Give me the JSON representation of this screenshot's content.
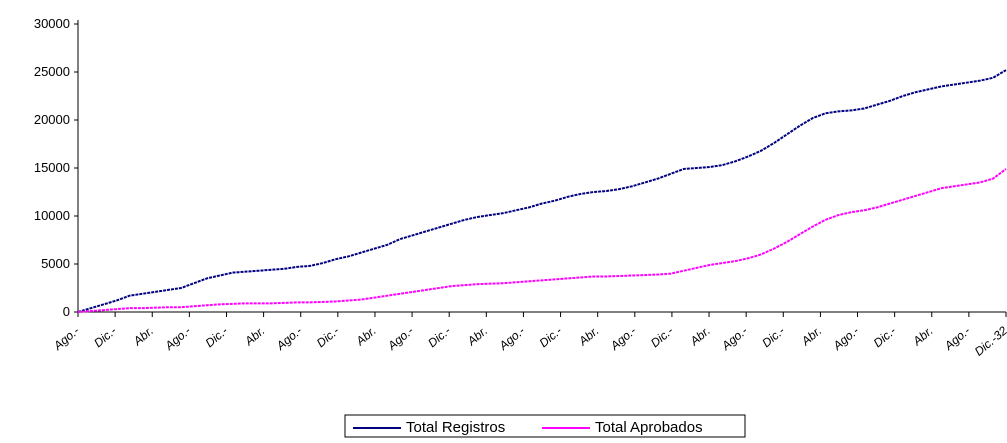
{
  "chart_data": {
    "type": "line",
    "title": "",
    "xlabel": "",
    "ylabel": "",
    "ylim": [
      0,
      30000
    ],
    "yticks": [
      0,
      5000,
      10000,
      15000,
      20000,
      25000,
      30000
    ],
    "ytick_labels": [
      "0",
      "5000",
      "10000",
      "15000",
      "20000",
      "25000",
      "30000"
    ],
    "xtick_labels": [
      "Ago.-",
      "Dic.-",
      "Abr.",
      "Ago.-",
      "Dic.-",
      "Abr.",
      "Ago.-",
      "Dic.-",
      "Abr.",
      "Ago.-",
      "Dic.-",
      "Abr.",
      "Ago.-",
      "Dic.-",
      "Abr.",
      "Ago.-",
      "Dic.-",
      "Abr.",
      "Ago.-",
      "Dic.-",
      "Abr.",
      "Ago.-",
      "Dic.-",
      "Abr.",
      "Ago.-",
      "Dic.-32"
    ],
    "legend_position": "bottom",
    "grid": false,
    "series": [
      {
        "name": "Total Registros",
        "color": "#000080",
        "values": [
          0,
          400,
          800,
          1200,
          1700,
          1900,
          2100,
          2300,
          2500,
          3000,
          3500,
          3800,
          4100,
          4200,
          4300,
          4400,
          4500,
          4700,
          4800,
          5100,
          5500,
          5800,
          6200,
          6600,
          7000,
          7600,
          8000,
          8400,
          8800,
          9200,
          9600,
          9900,
          10100,
          10300,
          10600,
          10900,
          11300,
          11600,
          12000,
          12300,
          12500,
          12600,
          12800,
          13100,
          13500,
          13900,
          14400,
          14900,
          15000,
          15100,
          15300,
          15700,
          16200,
          16800,
          17600,
          18500,
          19400,
          20200,
          20700,
          20900,
          21000,
          21200,
          21600,
          22000,
          22500,
          22900,
          23200,
          23500,
          23700,
          23900,
          24100,
          24400,
          25200
        ]
      },
      {
        "name": "Total Aprobados",
        "color": "#ff00ff",
        "values": [
          0,
          100,
          200,
          300,
          400,
          400,
          450,
          500,
          500,
          600,
          700,
          800,
          850,
          900,
          900,
          900,
          950,
          1000,
          1000,
          1050,
          1100,
          1200,
          1300,
          1500,
          1700,
          1900,
          2100,
          2300,
          2500,
          2700,
          2800,
          2900,
          2950,
          3000,
          3100,
          3200,
          3300,
          3400,
          3500,
          3600,
          3700,
          3700,
          3750,
          3800,
          3850,
          3900,
          4000,
          4300,
          4600,
          4900,
          5100,
          5300,
          5600,
          6000,
          6600,
          7300,
          8100,
          8900,
          9600,
          10100,
          10400,
          10600,
          10900,
          11300,
          11700,
          12100,
          12500,
          12900,
          13100,
          13300,
          13500,
          13900,
          14900
        ]
      }
    ]
  }
}
